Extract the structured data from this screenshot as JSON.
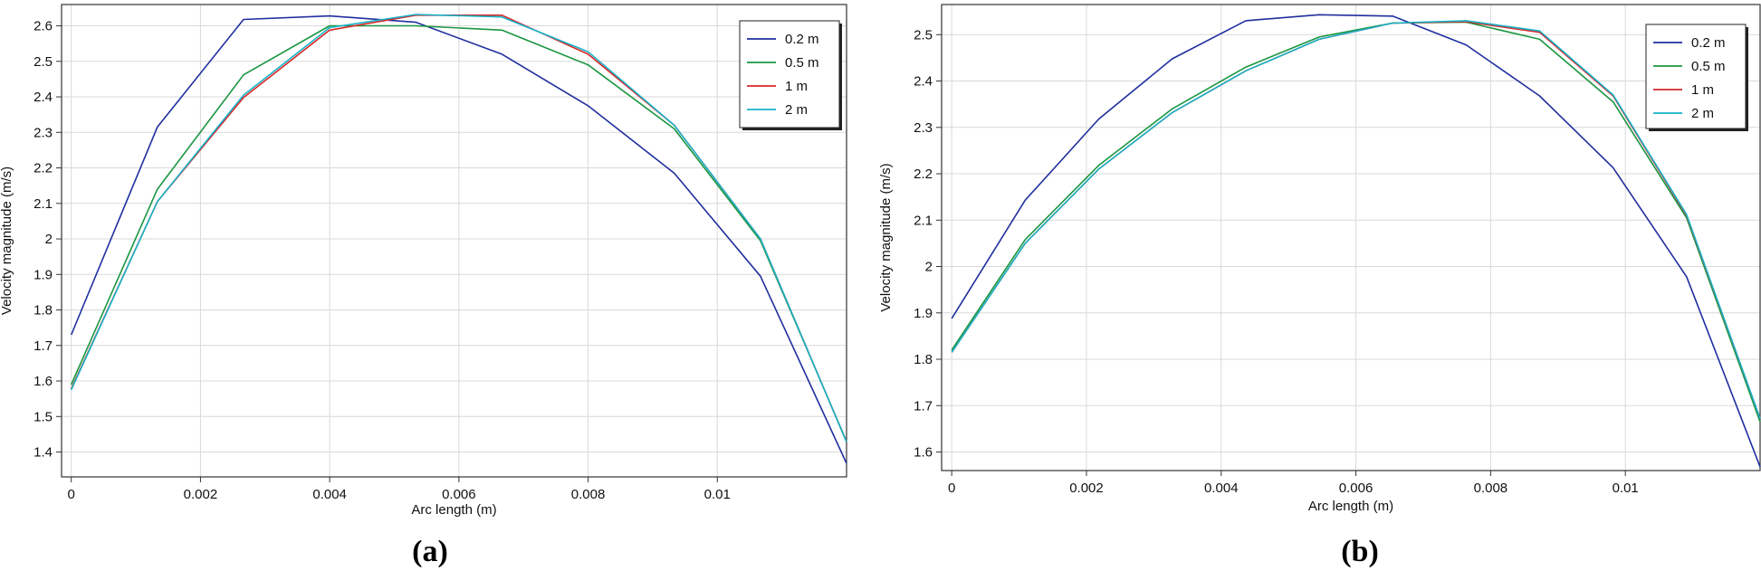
{
  "chart_data": [
    {
      "type": "line",
      "panel_label": "(a)",
      "xlabel": "Arc length (m)",
      "ylabel": "Velocity magnitude (m/s)",
      "xlim": [
        -0.00015,
        0.012
      ],
      "ylim": [
        1.33,
        2.66
      ],
      "x_ticks": [
        0,
        0.002,
        0.004,
        0.006,
        0.008,
        0.01
      ],
      "x_tick_labels": [
        "0",
        "0.002",
        "0.004",
        "0.006",
        "0.008",
        "0.01"
      ],
      "y_ticks": [
        1.4,
        1.5,
        1.6,
        1.7,
        1.8,
        1.9,
        2,
        2.1,
        2.2,
        2.3,
        2.4,
        2.5,
        2.6
      ],
      "y_tick_labels": [
        "1.4",
        "1.5",
        "1.6",
        "1.7",
        "1.8",
        "1.9",
        "2",
        "2.1",
        "2.2",
        "2.3",
        "2.4",
        "2.5",
        "2.6"
      ],
      "grid": true,
      "legend_position": "top-right",
      "x": [
        0,
        0.001333,
        0.002667,
        0.004,
        0.005333,
        0.006667,
        0.008,
        0.009333,
        0.010667,
        0.012
      ],
      "series": [
        {
          "name": "0.2 m",
          "color": "#1f2f9e",
          "values": [
            1.73,
            2.315,
            2.618,
            2.628,
            2.61,
            2.52,
            2.375,
            2.185,
            1.895,
            1.368
          ]
        },
        {
          "name": "0.5 m",
          "color": "#1a9641",
          "values": [
            1.59,
            2.14,
            2.462,
            2.6,
            2.6,
            2.588,
            2.49,
            2.31,
            1.995,
            1.43
          ]
        },
        {
          "name": "1 m",
          "color": "#d62728",
          "values": [
            1.578,
            2.105,
            2.398,
            2.588,
            2.63,
            2.63,
            2.52,
            2.32,
            2.0,
            1.428
          ]
        },
        {
          "name": "2 m",
          "color": "#17b3c8",
          "values": [
            1.575,
            2.105,
            2.405,
            2.595,
            2.632,
            2.625,
            2.527,
            2.32,
            2.0,
            1.428
          ]
        }
      ]
    },
    {
      "type": "line",
      "panel_label": "(b)",
      "xlabel": "Arc length (m)",
      "ylabel": "Velocity magnitude (m/s)",
      "xlim": [
        -0.00015,
        0.012
      ],
      "ylim": [
        1.56,
        2.565
      ],
      "x_ticks": [
        0,
        0.002,
        0.004,
        0.006,
        0.008,
        0.01
      ],
      "x_tick_labels": [
        "0",
        "0.002",
        "0.004",
        "0.006",
        "0.008",
        "0.01"
      ],
      "y_ticks": [
        1.6,
        1.7,
        1.8,
        1.9,
        2,
        2.1,
        2.2,
        2.3,
        2.4,
        2.5
      ],
      "y_tick_labels": [
        "1.6",
        "1.7",
        "1.8",
        "1.9",
        "2",
        "2.1",
        "2.2",
        "2.3",
        "2.4",
        "2.5"
      ],
      "grid": true,
      "legend_position": "top-right",
      "x": [
        0,
        0.001091,
        0.002182,
        0.003273,
        0.004364,
        0.005455,
        0.006545,
        0.007636,
        0.008727,
        0.009818,
        0.010909,
        0.012
      ],
      "series": [
        {
          "name": "0.2 m",
          "color": "#1f2f9e",
          "values": [
            1.888,
            2.143,
            2.318,
            2.448,
            2.53,
            2.543,
            2.54,
            2.478,
            2.368,
            2.213,
            1.978,
            1.568
          ]
        },
        {
          "name": "0.5 m",
          "color": "#1a9641",
          "values": [
            1.82,
            2.058,
            2.218,
            2.34,
            2.43,
            2.495,
            2.525,
            2.527,
            2.49,
            2.355,
            2.105,
            1.665
          ]
        },
        {
          "name": "1 m",
          "color": "#d62728",
          "values": [
            1.815,
            2.05,
            2.21,
            2.332,
            2.422,
            2.49,
            2.525,
            2.528,
            2.505,
            2.368,
            2.11,
            1.672
          ]
        },
        {
          "name": "2 m",
          "color": "#17b3c8",
          "values": [
            1.815,
            2.05,
            2.21,
            2.332,
            2.422,
            2.49,
            2.525,
            2.53,
            2.508,
            2.37,
            2.112,
            1.672
          ]
        }
      ]
    }
  ]
}
